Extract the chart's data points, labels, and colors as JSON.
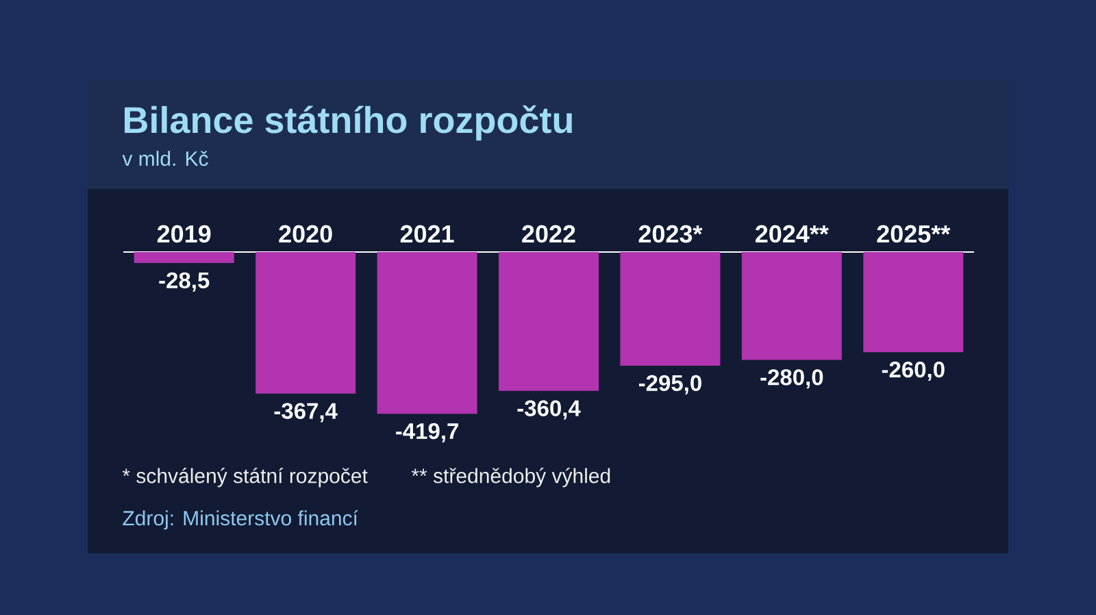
{
  "chart_data": {
    "type": "bar",
    "title": "Bilance státního rozpočtu",
    "subtitle": "v mld. Kč",
    "categories": [
      "2019",
      "2020",
      "2021",
      "2022",
      "2023*",
      "2024**",
      "2025**"
    ],
    "values": [
      -28.5,
      -367.4,
      -419.7,
      -360.4,
      -295.0,
      -280.0,
      -260.0
    ],
    "value_labels": [
      "-28,5",
      "-367,4",
      "-419,7",
      "-360,4",
      "-295,0",
      "-280,0",
      "-260,0"
    ],
    "color": "#b234b0",
    "annotations": [
      "* schválený státní rozpočet",
      "** střednědobý výhled",
      "Zdroj: Ministerstvo financí"
    ]
  }
}
